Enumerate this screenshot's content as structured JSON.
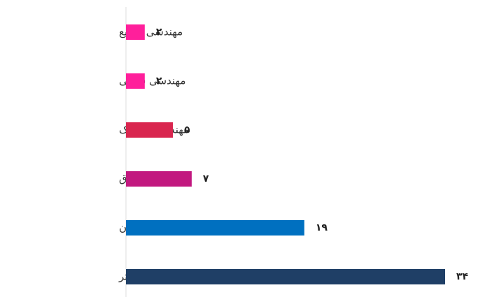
{
  "chart_data": {
    "type": "bar",
    "orientation": "horizontal",
    "categories": [
      "مهندسی صنایع",
      "مهندسی شیمی",
      "مهندسی مکانیک",
      "مهندسی برق",
      "مهندسی عمران",
      "مهندسی کامپیوتر"
    ],
    "values": [
      2,
      2,
      5,
      7,
      19,
      34
    ],
    "value_labels": [
      "۲",
      "۲",
      "۵",
      "۷",
      "۱۹",
      "۳۴"
    ],
    "colors": [
      "#ff1f9b",
      "#ff1f9b",
      "#d9264f",
      "#c2187f",
      "#0070c0",
      "#1f3f66"
    ]
  }
}
